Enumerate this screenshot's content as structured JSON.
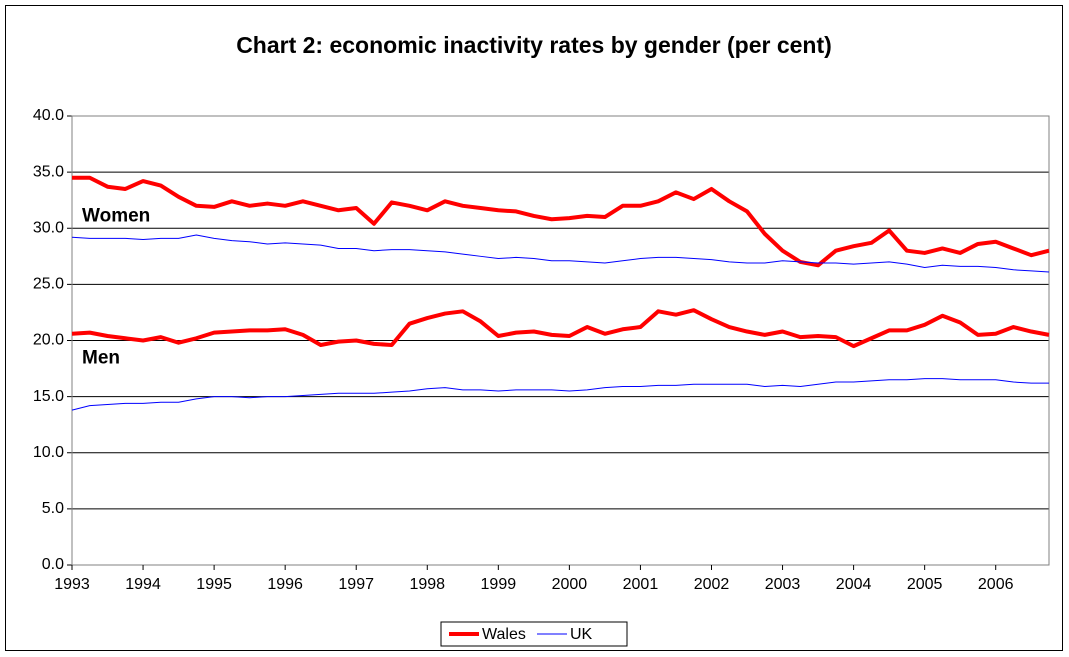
{
  "chart_data": {
    "type": "line",
    "title": "Chart 2: economic inactivity rates by gender (per cent)",
    "annotations": [
      "Women",
      "Men"
    ],
    "x": [
      1993,
      1993.25,
      1993.5,
      1993.75,
      1994,
      1994.25,
      1994.5,
      1994.75,
      1995,
      1995.25,
      1995.5,
      1995.75,
      1996,
      1996.25,
      1996.5,
      1996.75,
      1997,
      1997.25,
      1997.5,
      1997.75,
      1998,
      1998.25,
      1998.5,
      1998.75,
      1999,
      1999.25,
      1999.5,
      1999.75,
      2000,
      2000.25,
      2000.5,
      2000.75,
      2001,
      2001.25,
      2001.5,
      2001.75,
      2002,
      2002.25,
      2002.5,
      2002.75,
      2003,
      2003.25,
      2003.5,
      2003.75,
      2004,
      2004.25,
      2004.5,
      2004.75,
      2005,
      2005.25,
      2005.5,
      2005.75,
      2006,
      2006.25,
      2006.5,
      2006.75
    ],
    "series": [
      {
        "name": "Wales",
        "color": "#ff0000",
        "values": [
          34.5,
          34.5,
          33.7,
          33.5,
          34.2,
          33.8,
          32.8,
          32.0,
          31.9,
          32.4,
          32.0,
          32.2,
          32.0,
          32.4,
          32.0,
          31.6,
          31.8,
          30.4,
          32.3,
          32.0,
          31.6,
          32.4,
          32.0,
          31.8,
          31.6,
          31.5,
          31.1,
          30.8,
          30.9,
          31.1,
          31.0,
          32.0,
          32.0,
          32.4,
          33.2,
          32.6,
          33.5,
          32.4,
          31.5,
          29.5,
          28.0,
          27.0,
          26.7,
          28.0,
          28.4,
          28.7,
          29.8,
          28.0,
          27.8,
          28.2,
          27.8,
          28.6,
          28.8,
          28.2,
          27.6,
          28.0
        ]
      },
      {
        "name": "UK",
        "color": "#0000ff",
        "values": [
          29.2,
          29.1,
          29.1,
          29.1,
          29.0,
          29.1,
          29.1,
          29.4,
          29.1,
          28.9,
          28.8,
          28.6,
          28.7,
          28.6,
          28.5,
          28.2,
          28.2,
          28.0,
          28.1,
          28.1,
          28.0,
          27.9,
          27.7,
          27.5,
          27.3,
          27.4,
          27.3,
          27.1,
          27.1,
          27.0,
          26.9,
          27.1,
          27.3,
          27.4,
          27.4,
          27.3,
          27.2,
          27.0,
          26.9,
          26.9,
          27.1,
          27.0,
          26.9,
          26.9,
          26.8,
          26.9,
          27.0,
          26.8,
          26.5,
          26.7,
          26.6,
          26.6,
          26.5,
          26.3,
          26.2,
          26.1
        ]
      },
      {
        "name": "Wales",
        "color": "#ff0000",
        "values": [
          20.6,
          20.7,
          20.4,
          20.2,
          20.0,
          20.3,
          19.8,
          20.2,
          20.7,
          20.8,
          20.9,
          20.9,
          21.0,
          20.5,
          19.6,
          19.9,
          20.0,
          19.7,
          19.6,
          21.5,
          22.0,
          22.4,
          22.6,
          21.7,
          20.4,
          20.7,
          20.8,
          20.5,
          20.4,
          21.2,
          20.6,
          21.0,
          21.2,
          22.6,
          22.3,
          22.7,
          21.9,
          21.2,
          20.8,
          20.5,
          20.8,
          20.3,
          20.4,
          20.3,
          19.5,
          20.2,
          20.9,
          20.9,
          21.4,
          22.2,
          21.6,
          20.5,
          20.6,
          21.2,
          20.8,
          20.5
        ]
      },
      {
        "name": "UK",
        "color": "#0000ff",
        "values": [
          13.8,
          14.2,
          14.3,
          14.4,
          14.4,
          14.5,
          14.5,
          14.8,
          15.0,
          15.0,
          14.9,
          15.0,
          15.0,
          15.1,
          15.2,
          15.3,
          15.3,
          15.3,
          15.4,
          15.5,
          15.7,
          15.8,
          15.6,
          15.6,
          15.5,
          15.6,
          15.6,
          15.6,
          15.5,
          15.6,
          15.8,
          15.9,
          15.9,
          16.0,
          16.0,
          16.1,
          16.1,
          16.1,
          16.1,
          15.9,
          16.0,
          15.9,
          16.1,
          16.3,
          16.3,
          16.4,
          16.5,
          16.5,
          16.6,
          16.6,
          16.5,
          16.5,
          16.5,
          16.3,
          16.2,
          16.2
        ]
      }
    ],
    "xlim": [
      1993,
      2006.75
    ],
    "xticks": [
      1993,
      1994,
      1995,
      1996,
      1997,
      1998,
      1999,
      2000,
      2001,
      2002,
      2003,
      2004,
      2005,
      2006
    ],
    "ylim": [
      0,
      40
    ],
    "yticks": [
      {
        "value": 0,
        "label": "0.0"
      },
      {
        "value": 5,
        "label": "5.0"
      },
      {
        "value": 10,
        "label": "10.0"
      },
      {
        "value": 15,
        "label": "15.0"
      },
      {
        "value": 20,
        "label": "20.0"
      },
      {
        "value": 25,
        "label": "25.0"
      },
      {
        "value": 30,
        "label": "30.0"
      },
      {
        "value": 35,
        "label": "35.0"
      },
      {
        "value": 40,
        "label": "40.0"
      }
    ],
    "grid": true,
    "legend": "bottom"
  }
}
